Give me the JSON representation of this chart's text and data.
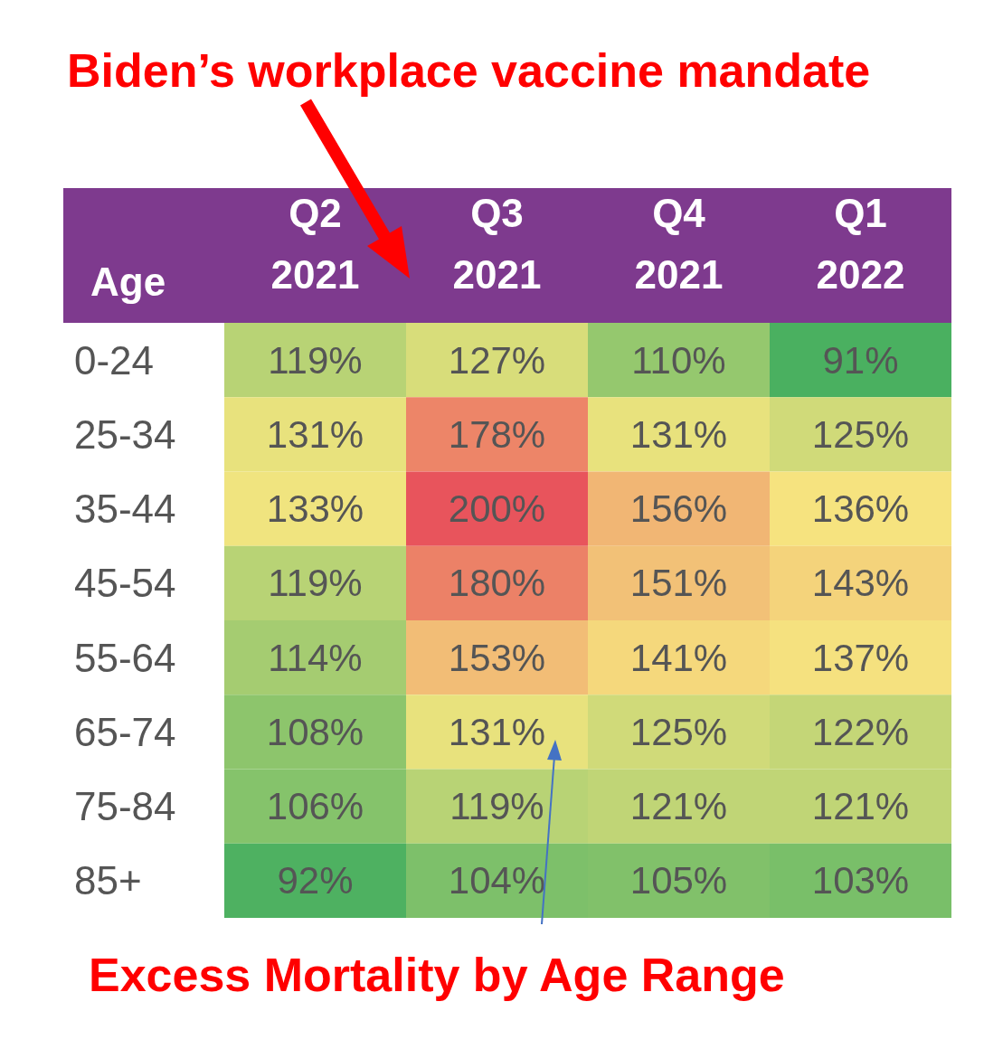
{
  "chart_data": {
    "type": "heatmap",
    "ylabel": "Age",
    "annotations": [
      "Biden’s workplace vaccine mandate",
      "Excess Mortality by Age Range"
    ],
    "categories": [
      "Q2 2021",
      "Q3 2021",
      "Q4 2021",
      "Q1 2022"
    ],
    "y_categories": [
      "0-24",
      "25-34",
      "35-44",
      "45-54",
      "55-64",
      "65-74",
      "75-84",
      "85+"
    ],
    "cells": [
      [
        119,
        127,
        110,
        91
      ],
      [
        131,
        178,
        131,
        125
      ],
      [
        133,
        200,
        156,
        136
      ],
      [
        119,
        180,
        151,
        143
      ],
      [
        114,
        153,
        141,
        137
      ],
      [
        108,
        131,
        125,
        122
      ],
      [
        106,
        119,
        121,
        121
      ],
      [
        92,
        104,
        105,
        103
      ]
    ],
    "cell_labels": [
      [
        "119%",
        "127%",
        "110%",
        "91%"
      ],
      [
        "131%",
        "178%",
        "131%",
        "125%"
      ],
      [
        "133%",
        "200%",
        "156%",
        "136%"
      ],
      [
        "119%",
        "180%",
        "151%",
        "143%"
      ],
      [
        "114%",
        "153%",
        "141%",
        "137%"
      ],
      [
        "108%",
        "131%",
        "125%",
        "122%"
      ],
      [
        "106%",
        "119%",
        "121%",
        "121%"
      ],
      [
        "92%",
        "104%",
        "105%",
        "103%"
      ]
    ]
  }
}
